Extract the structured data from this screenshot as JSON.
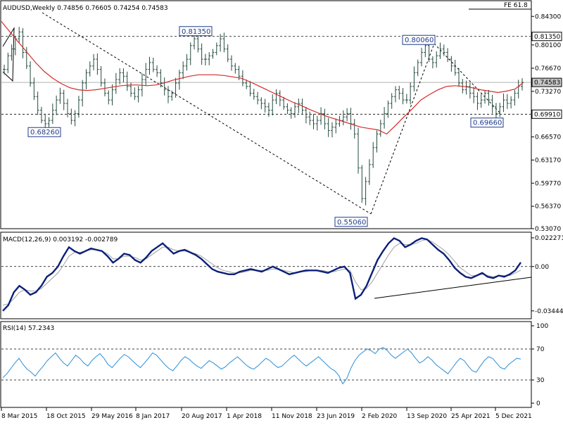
{
  "chart_data": [
    {
      "type": "ohlc",
      "title": "AUDUSD,Weekly 0.74856 0.76605 0.74254 0.74583",
      "ylim": [
        0.5307,
        0.865
      ],
      "x_ticks": [
        "8 Mar 2015",
        "18 Oct 2015",
        "29 May 2016",
        "8 Jan 2017",
        "20 Aug 2017",
        "1 Apr 2018",
        "11 Nov 2018",
        "23 Jun 2019",
        "2 Feb 2020",
        "13 Sep 2020",
        "25 Apr 2021",
        "5 Dec 2021"
      ],
      "y_ticks": [
        "0.84300",
        "0.80100",
        "0.76670",
        "0.73270",
        "0.69910",
        "0.66570",
        "0.63170",
        "0.59770",
        "0.56370",
        "0.53070"
      ],
      "price_labels": [
        {
          "text": "0.81350",
          "value": 0.8135
        },
        {
          "text": "0.68260",
          "value": 0.6826
        },
        {
          "text": "0.55060",
          "value": 0.5506
        },
        {
          "text": "0.80060",
          "value": 0.8006
        },
        {
          "text": "0.69660",
          "value": 0.6966
        }
      ],
      "axis_labels": [
        {
          "text": "0.81350",
          "value": 0.8135
        },
        {
          "text": "0.74583",
          "value": 0.74583
        },
        {
          "text": "0.69910",
          "value": 0.6991
        }
      ],
      "annotation": "FE 61.8",
      "horizontal_levels": [
        0.8135,
        0.6991
      ],
      "current_price": 0.74583,
      "series": [
        {
          "name": "price",
          "values": [
            0.765,
            0.785,
            0.795,
            0.81,
            0.82,
            0.79,
            0.77,
            0.745,
            0.725,
            0.705,
            0.69,
            0.685,
            0.69,
            0.705,
            0.72,
            0.73,
            0.715,
            0.7,
            0.69,
            0.7,
            0.72,
            0.745,
            0.76,
            0.77,
            0.78,
            0.765,
            0.745,
            0.73,
            0.72,
            0.735,
            0.75,
            0.76,
            0.755,
            0.74,
            0.73,
            0.725,
            0.735,
            0.75,
            0.765,
            0.775,
            0.765,
            0.76,
            0.745,
            0.735,
            0.725,
            0.73,
            0.745,
            0.76,
            0.77,
            0.78,
            0.8,
            0.81,
            0.795,
            0.78,
            0.78,
            0.785,
            0.79,
            0.8,
            0.81,
            0.795,
            0.78,
            0.77,
            0.765,
            0.755,
            0.745,
            0.74,
            0.73,
            0.725,
            0.72,
            0.715,
            0.71,
            0.705,
            0.72,
            0.73,
            0.72,
            0.71,
            0.705,
            0.7,
            0.71,
            0.715,
            0.705,
            0.695,
            0.69,
            0.685,
            0.69,
            0.7,
            0.685,
            0.675,
            0.68,
            0.685,
            0.69,
            0.695,
            0.7,
            0.685,
            0.67,
            0.62,
            0.575,
            0.6,
            0.625,
            0.65,
            0.67,
            0.685,
            0.7,
            0.715,
            0.725,
            0.735,
            0.73,
            0.72,
            0.72,
            0.74,
            0.76,
            0.775,
            0.79,
            0.8,
            0.78,
            0.775,
            0.785,
            0.795,
            0.79,
            0.78,
            0.77,
            0.76,
            0.745,
            0.735,
            0.74,
            0.73,
            0.725,
            0.715,
            0.72,
            0.73,
            0.72,
            0.71,
            0.7,
            0.71,
            0.72,
            0.715,
            0.72,
            0.73,
            0.74,
            0.746
          ]
        },
        {
          "name": "ma",
          "values": [
            0.8355,
            0.82,
            0.805,
            0.79,
            0.775,
            0.762,
            0.752,
            0.744,
            0.738,
            0.735,
            0.734,
            0.735,
            0.737,
            0.739,
            0.741,
            0.742,
            0.742,
            0.741,
            0.742,
            0.745,
            0.749,
            0.752,
            0.755,
            0.757,
            0.757,
            0.757,
            0.756,
            0.754,
            0.752,
            0.747,
            0.741,
            0.735,
            0.729,
            0.723,
            0.717,
            0.712,
            0.706,
            0.701,
            0.696,
            0.692,
            0.688,
            0.684,
            0.68,
            0.678,
            0.676,
            0.67,
            0.682,
            0.695,
            0.707,
            0.72,
            0.728,
            0.735,
            0.74,
            0.741,
            0.74,
            0.738,
            0.735,
            0.733,
            0.731,
            0.733,
            0.736,
            0.746
          ]
        }
      ]
    },
    {
      "type": "line",
      "title": "MACD(12,26,9) 0.003192 -0.002789",
      "ylim": [
        -0.04,
        0.025
      ],
      "y_ticks": [
        "0.022271",
        "0.00",
        "-0.03444"
      ],
      "axis_labels": [
        {
          "text": "0.00",
          "value": 0
        }
      ],
      "zero_level": 0,
      "series": [
        {
          "name": "MACD",
          "values": [
            -0.03444,
            -0.03,
            -0.02,
            -0.015,
            -0.018,
            -0.022,
            -0.02,
            -0.015,
            -0.008,
            -0.005,
            0.0,
            0.008,
            0.015,
            0.012,
            0.01,
            0.012,
            0.014,
            0.013,
            0.012,
            0.008,
            0.003,
            0.006,
            0.01,
            0.009,
            0.005,
            0.003,
            0.007,
            0.012,
            0.015,
            0.018,
            0.014,
            0.01,
            0.012,
            0.013,
            0.011,
            0.009,
            0.006,
            0.002,
            -0.002,
            -0.004,
            -0.005,
            -0.006,
            -0.006,
            -0.004,
            -0.003,
            -0.002,
            -0.003,
            -0.004,
            -0.002,
            0.0,
            -0.002,
            -0.004,
            -0.006,
            -0.005,
            -0.004,
            -0.003,
            -0.003,
            -0.003,
            -0.004,
            -0.005,
            -0.003,
            -0.001,
            0.0,
            -0.005,
            -0.025,
            -0.022,
            -0.015,
            -0.005,
            0.005,
            0.012,
            0.018,
            0.022,
            0.02,
            0.015,
            0.017,
            0.02,
            0.022,
            0.021,
            0.017,
            0.013,
            0.01,
            0.005,
            -0.001,
            -0.005,
            -0.008,
            -0.009,
            -0.007,
            -0.005,
            -0.008,
            -0.009,
            -0.007,
            -0.008,
            -0.006,
            -0.003,
            0.003192
          ]
        },
        {
          "name": "signal",
          "values": [
            -0.03,
            -0.029,
            -0.025,
            -0.02,
            -0.018,
            -0.019,
            -0.019,
            -0.017,
            -0.013,
            -0.009,
            -0.005,
            0.001,
            0.008,
            0.011,
            0.011,
            0.012,
            0.013,
            0.013,
            0.012,
            0.01,
            0.006,
            0.006,
            0.008,
            0.008,
            0.007,
            0.005,
            0.006,
            0.009,
            0.012,
            0.015,
            0.015,
            0.013,
            0.012,
            0.012,
            0.011,
            0.01,
            0.008,
            0.005,
            0.002,
            -0.001,
            -0.003,
            -0.004,
            -0.005,
            -0.005,
            -0.004,
            -0.003,
            -0.003,
            -0.003,
            -0.003,
            -0.002,
            -0.002,
            -0.003,
            -0.004,
            -0.005,
            -0.004,
            -0.004,
            -0.003,
            -0.003,
            -0.003,
            -0.004,
            -0.004,
            -0.003,
            -0.002,
            -0.003,
            -0.012,
            -0.018,
            -0.017,
            -0.012,
            -0.005,
            0.002,
            0.009,
            0.015,
            0.018,
            0.017,
            0.017,
            0.018,
            0.02,
            0.021,
            0.019,
            0.016,
            0.013,
            0.009,
            0.004,
            -0.001,
            -0.004,
            -0.007,
            -0.007,
            -0.006,
            -0.007,
            -0.008,
            -0.007,
            -0.007,
            -0.007,
            -0.005,
            -0.002789
          ]
        }
      ]
    },
    {
      "type": "line",
      "title": "RSI(14) 57.2343",
      "ylim": [
        0,
        100
      ],
      "y_ticks": [
        "100",
        "70",
        "30",
        "0"
      ],
      "levels": [
        70,
        30
      ],
      "series": [
        {
          "name": "RSI",
          "values": [
            33,
            38,
            45,
            52,
            58,
            50,
            44,
            40,
            35,
            42,
            48,
            55,
            60,
            65,
            58,
            52,
            48,
            55,
            62,
            58,
            52,
            48,
            55,
            60,
            64,
            58,
            50,
            46,
            52,
            58,
            63,
            60,
            55,
            50,
            46,
            52,
            58,
            65,
            62,
            56,
            50,
            45,
            42,
            48,
            55,
            60,
            57,
            52,
            48,
            45,
            50,
            55,
            52,
            48,
            44,
            47,
            52,
            56,
            60,
            55,
            50,
            46,
            44,
            48,
            53,
            58,
            55,
            50,
            46,
            48,
            53,
            58,
            62,
            57,
            52,
            48,
            52,
            56,
            60,
            55,
            50,
            45,
            42,
            36,
            25,
            32,
            45,
            55,
            62,
            66,
            70,
            68,
            64,
            70,
            72,
            68,
            62,
            58,
            62,
            66,
            70,
            65,
            58,
            52,
            55,
            60,
            56,
            50,
            46,
            42,
            38,
            45,
            52,
            58,
            55,
            48,
            42,
            40,
            48,
            55,
            60,
            58,
            52,
            46,
            44,
            50,
            54,
            58,
            57
          ]
        }
      ]
    }
  ]
}
